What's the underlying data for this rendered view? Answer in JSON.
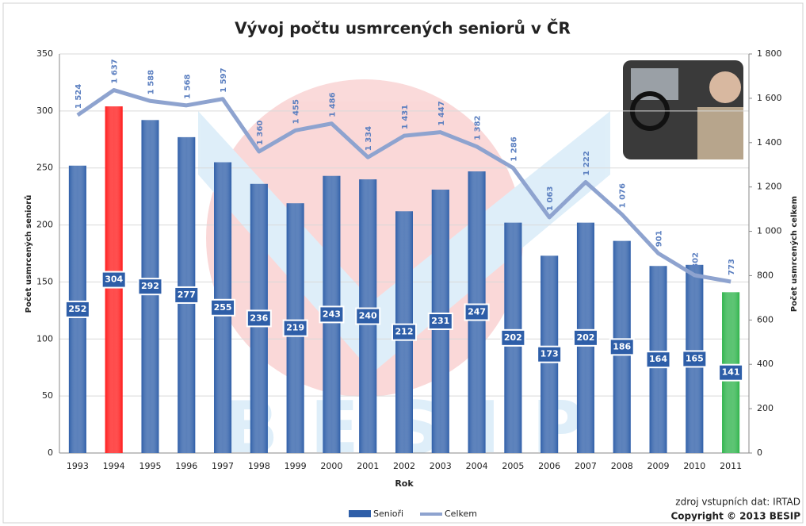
{
  "chart_data": {
    "type": "bar-line",
    "title": "Vývoj počtu usmrcených seniorů v ČR",
    "xlabel": "Rok",
    "ylabel": "Počet usmrcených seniorů",
    "y2label": "Počet usmrcených celkem",
    "categories": [
      "1993",
      "1994",
      "1995",
      "1996",
      "1997",
      "1998",
      "1999",
      "2000",
      "2001",
      "2002",
      "2003",
      "2004",
      "2005",
      "2006",
      "2007",
      "2008",
      "2009",
      "2010",
      "2011"
    ],
    "series": [
      {
        "name": "Senioři",
        "type": "bar",
        "color": "#2e5ea8",
        "colors": [
          "#2e5ea8",
          "#ff1a1a",
          "#2e5ea8",
          "#2e5ea8",
          "#2e5ea8",
          "#2e5ea8",
          "#2e5ea8",
          "#2e5ea8",
          "#2e5ea8",
          "#2e5ea8",
          "#2e5ea8",
          "#2e5ea8",
          "#2e5ea8",
          "#2e5ea8",
          "#2e5ea8",
          "#2e5ea8",
          "#2e5ea8",
          "#2e5ea8",
          "#2db34a"
        ],
        "values": [
          252,
          304,
          292,
          277,
          255,
          236,
          219,
          243,
          240,
          212,
          231,
          247,
          202,
          173,
          202,
          186,
          164,
          165,
          141
        ]
      },
      {
        "name": "Celkem",
        "type": "line",
        "axis": "y2",
        "color": "#8ea3cf",
        "values": [
          1524,
          1637,
          1588,
          1568,
          1597,
          1360,
          1455,
          1486,
          1334,
          1431,
          1447,
          1382,
          1286,
          1063,
          1222,
          1076,
          901,
          802,
          773
        ],
        "value_labels": [
          "1 524",
          "1 637",
          "1 588",
          "1 568",
          "1 597",
          "1 360",
          "1 455",
          "1 486",
          "1 334",
          "1 431",
          "1 447",
          "1 382",
          "1 286",
          "1 063",
          "1 222",
          "1 076",
          "901",
          "802",
          "773"
        ]
      }
    ],
    "ylim": [
      0,
      350
    ],
    "yticks": [
      0,
      50,
      100,
      150,
      200,
      250,
      300,
      350
    ],
    "y2lim": [
      0,
      1800
    ],
    "y2ticks": [
      0,
      200,
      400,
      600,
      800,
      {
        "value": 1000,
        "label": "1 000"
      },
      {
        "value": 1200,
        "label": "1 200"
      },
      {
        "value": 1400,
        "label": "1 400"
      },
      {
        "value": 1600,
        "label": "1 600"
      },
      {
        "value": 1800,
        "label": "1 800"
      }
    ],
    "grid": true,
    "source": "zdroj vstupních dat: IRTAD",
    "copyright": "Copyright © 2013 BESIP"
  }
}
